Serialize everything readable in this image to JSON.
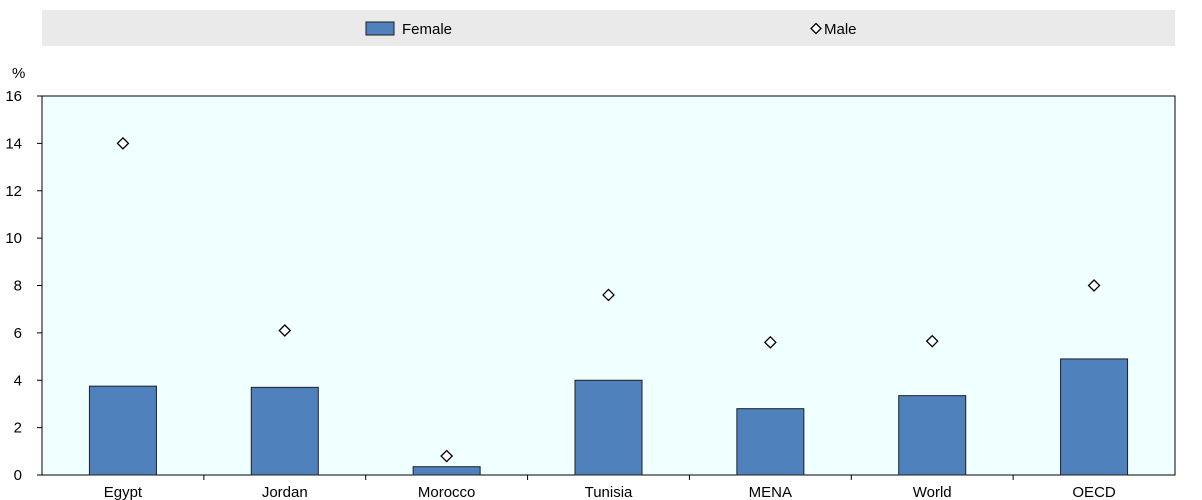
{
  "chart_data": {
    "type": "bar",
    "categories": [
      "Egypt",
      "Jordan",
      "Morocco",
      "Tunisia",
      "MENA",
      "World",
      "OECD"
    ],
    "series": [
      {
        "name": "Female",
        "mark": "bar",
        "color": "#4f81bd",
        "values": [
          3.75,
          3.7,
          0.35,
          4.0,
          2.8,
          3.35,
          4.9
        ]
      },
      {
        "name": "Male",
        "mark": "diamond",
        "color": "#000000",
        "values": [
          14.0,
          6.1,
          0.8,
          7.6,
          5.6,
          5.65,
          8.0
        ]
      }
    ],
    "y_unit_label": "%",
    "ylim": [
      0,
      16
    ],
    "yticks": [
      0,
      2,
      4,
      6,
      8,
      10,
      12,
      14,
      16
    ],
    "grid": false,
    "plot_background": "#f0ffff",
    "legend_placement": "top",
    "legend_background": "#eaeaea"
  }
}
